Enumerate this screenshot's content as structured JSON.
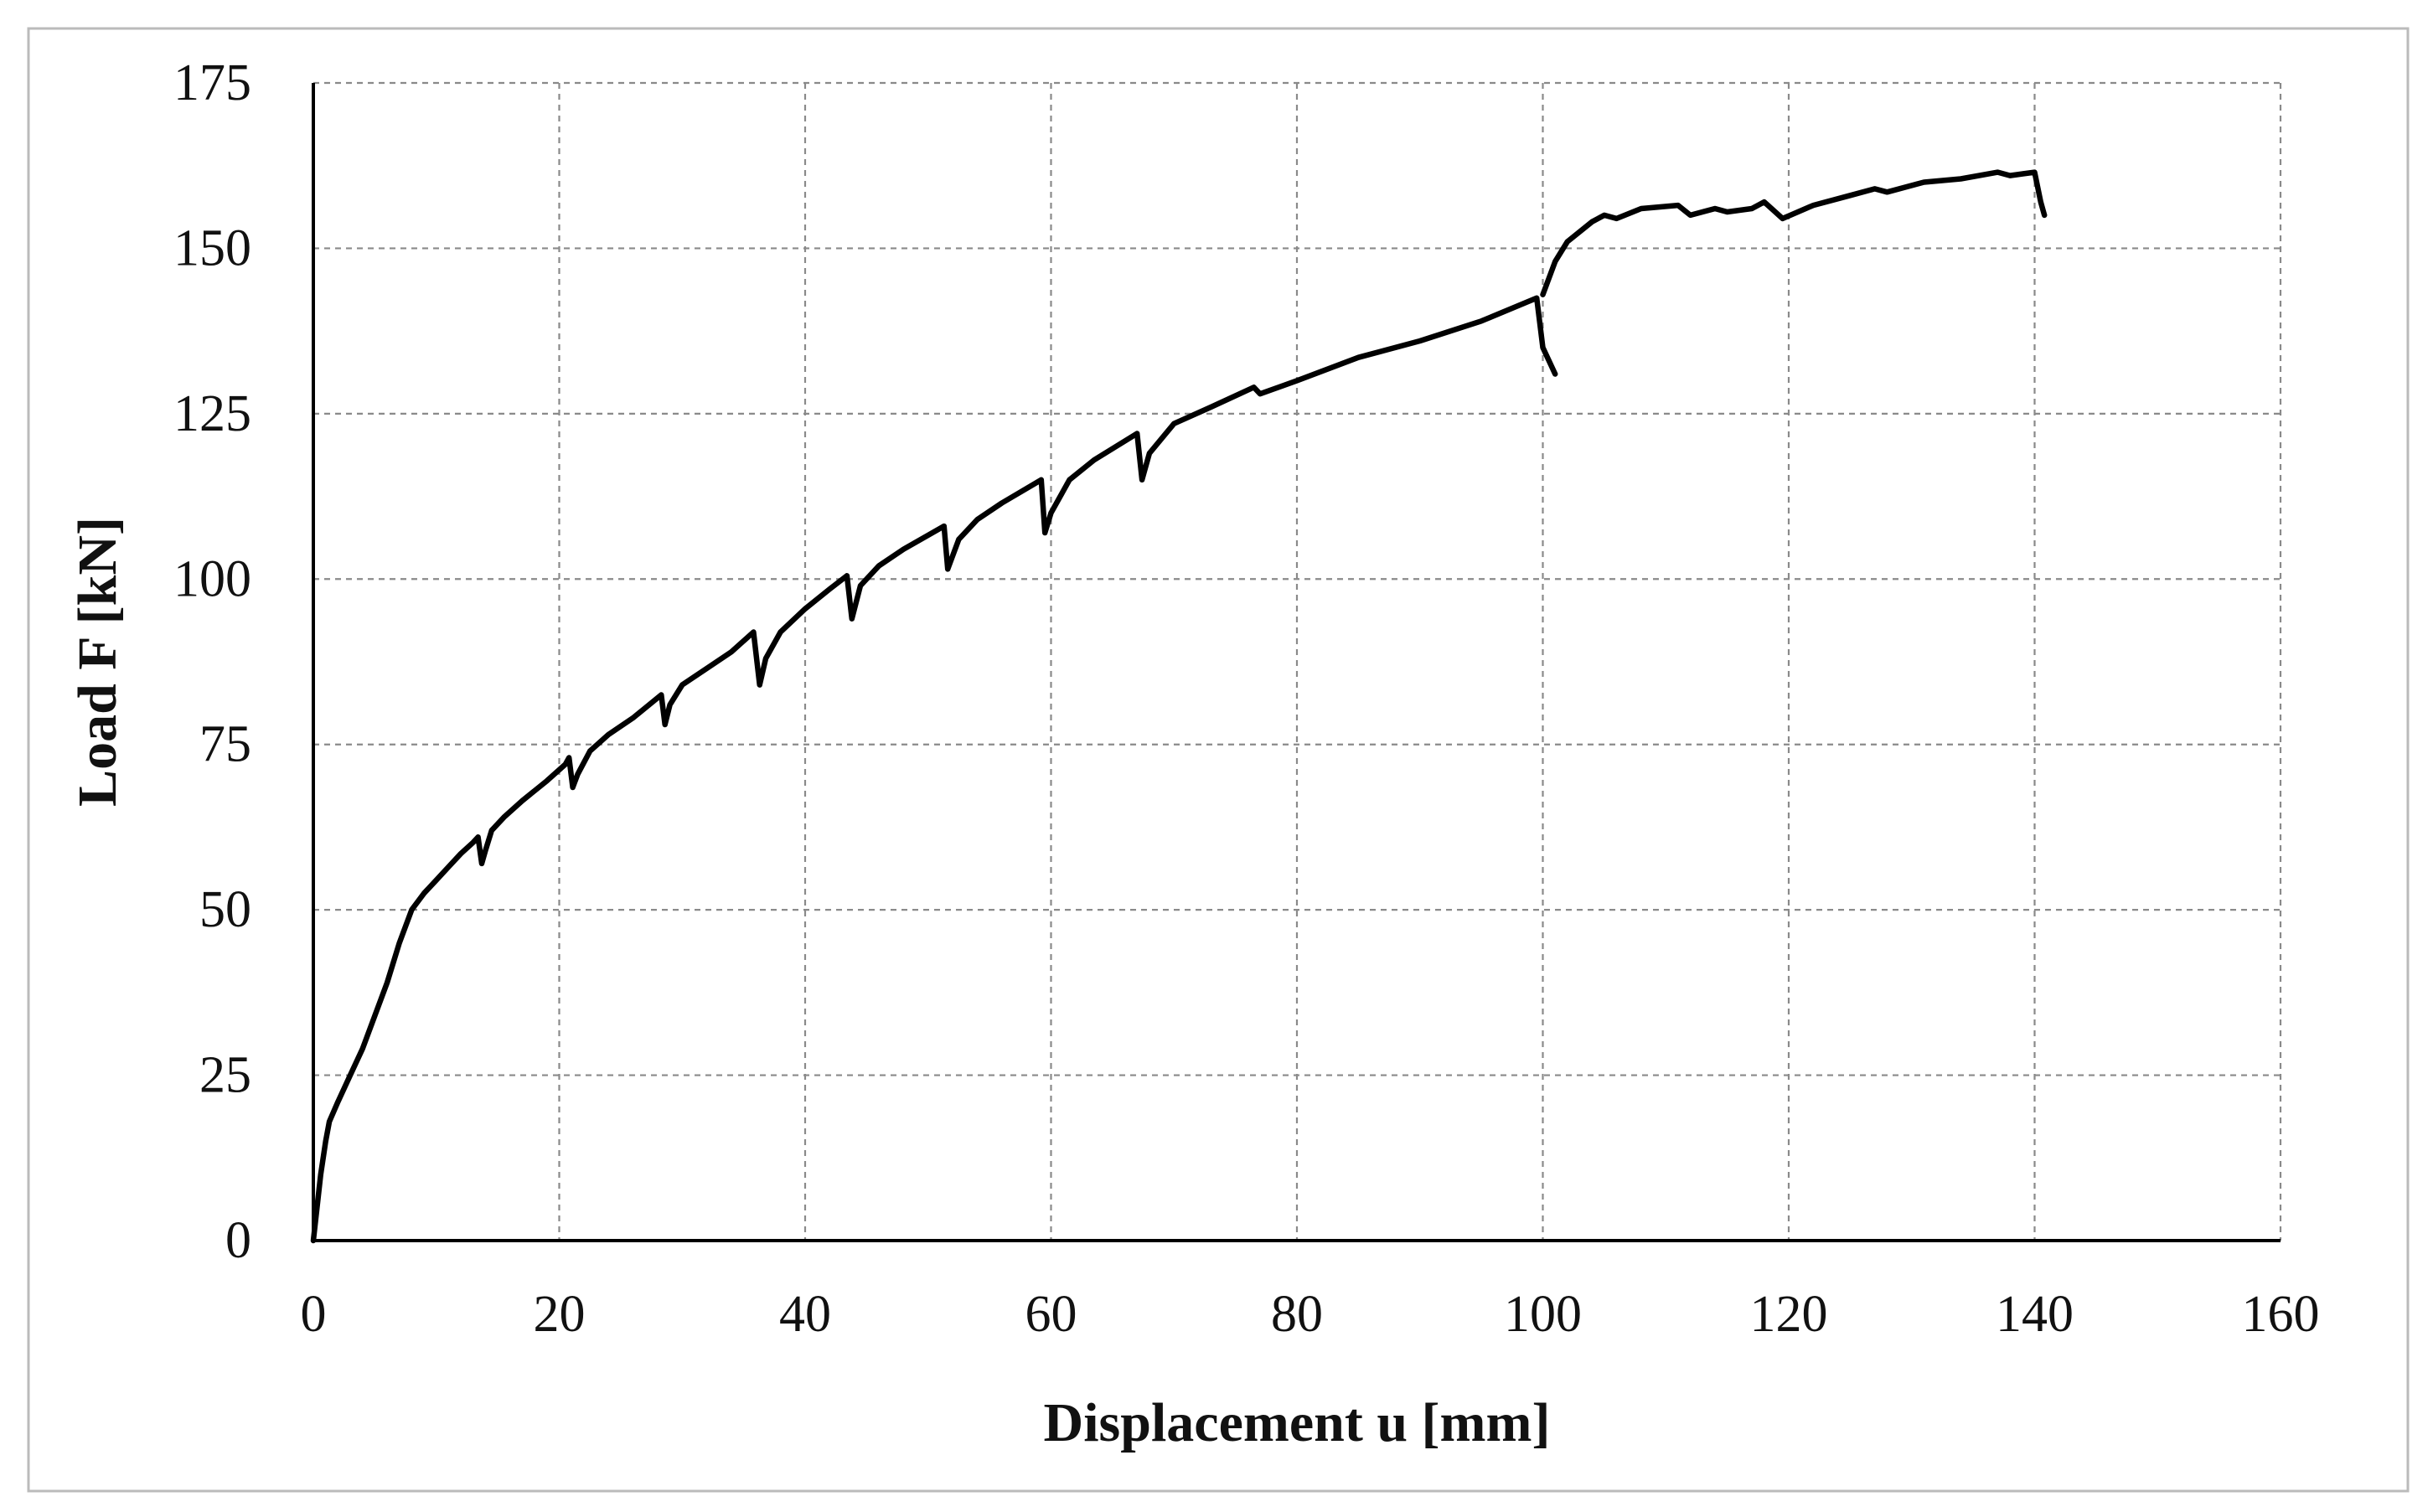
{
  "chart_data": {
    "type": "line",
    "xlabel": "Displacement u [mm]",
    "ylabel": "Load F [kN]",
    "x": [
      0,
      0.3,
      0.6,
      1,
      1.3,
      2,
      3,
      4,
      5,
      6,
      7,
      8,
      9,
      10,
      11,
      12,
      13,
      13.4,
      13.7,
      14,
      14.5,
      15.5,
      17,
      19,
      20.5,
      20.8,
      21.1,
      21.5,
      22.5,
      24,
      26,
      28.3,
      28.6,
      29,
      30,
      32,
      34,
      35.8,
      36.3,
      36.8,
      38,
      40,
      42,
      43.4,
      43.8,
      44.5,
      46,
      48,
      51.3,
      51.6,
      52.5,
      54,
      56,
      59.2,
      59.5,
      60,
      61.5,
      63.5,
      67,
      67.4,
      68,
      70,
      73,
      76.5,
      77,
      80,
      85,
      90,
      95,
      99.5,
      100,
      101,
      null,
      100,
      101,
      102,
      104,
      105,
      106,
      108,
      111,
      112,
      114,
      115,
      117,
      118,
      119.5,
      122,
      125,
      127,
      128,
      131,
      134,
      137,
      138,
      140,
      140.5,
      140.8
    ],
    "series": [
      {
        "name": "Load",
        "color": "#000000",
        "values": [
          0,
          5,
          10,
          15,
          18,
          21,
          25,
          29,
          34,
          39,
          45,
          50,
          52.5,
          54.5,
          56.5,
          58.5,
          60.2,
          61,
          57,
          59,
          62,
          64,
          66.5,
          69.5,
          72,
          73,
          68.5,
          70.5,
          74,
          76.5,
          79,
          82.5,
          78,
          81,
          84,
          86.5,
          89,
          92,
          84,
          88,
          92,
          95.5,
          98.5,
          100.5,
          94,
          99,
          102,
          104.5,
          108,
          101.5,
          106,
          109,
          111.5,
          115,
          107,
          110,
          115,
          118,
          122,
          115,
          119,
          123.5,
          126,
          129,
          128,
          130,
          133.5,
          136,
          139,
          142.5,
          135,
          131,
          null,
          143,
          148,
          151,
          154,
          155,
          154.5,
          156,
          156.5,
          155,
          156,
          155.5,
          156,
          157,
          154.5,
          156.5,
          158,
          159,
          158.5,
          160,
          160.5,
          161.5,
          161,
          161.5,
          157,
          155
        ]
      }
    ],
    "xlim": [
      0,
      160
    ],
    "xticks": [
      0,
      20,
      40,
      60,
      80,
      100,
      120,
      140,
      160
    ],
    "ylim": [
      0,
      175
    ],
    "yticks": [
      0,
      25,
      50,
      75,
      100,
      125,
      150,
      175
    ],
    "grid": true
  }
}
